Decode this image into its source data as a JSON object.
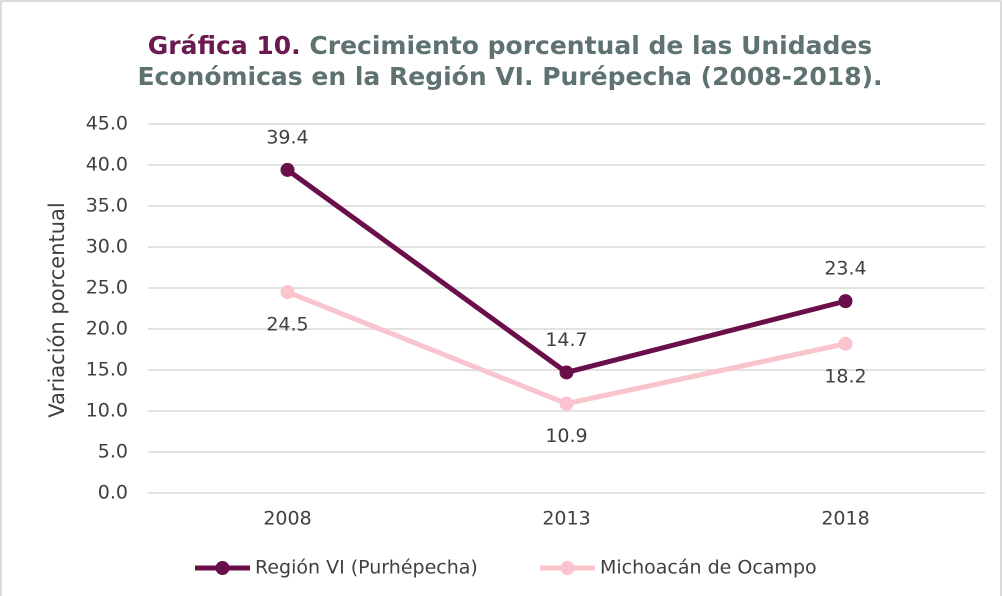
{
  "chart_data": {
    "type": "line",
    "title_label": "Gráfica 10.",
    "title": [
      "Crecimiento porcentual de las Unidades",
      "Económicas en la Región VI. Purépecha (2008-2018)."
    ],
    "y_label": "Variación porcentual",
    "categories": [
      "2008",
      "2013",
      "2018"
    ],
    "series": [
      {
        "name": "Región VI (Purhépecha)",
        "color": "#6b0f4a",
        "values": [
          39.4,
          14.7,
          23.4
        ]
      },
      {
        "name": "Michoacán de Ocampo",
        "color": "#f9c4cd",
        "values": [
          24.5,
          10.9,
          18.2
        ]
      }
    ],
    "ylim": [
      0,
      45
    ],
    "yticks": [
      {
        "value": 0,
        "label": "0.0"
      },
      {
        "value": 5,
        "label": "5.0"
      },
      {
        "value": 10,
        "label": "10.0"
      },
      {
        "value": 15,
        "label": "15.0"
      },
      {
        "value": 20,
        "label": "20.0"
      },
      {
        "value": 25,
        "label": "25.0"
      },
      {
        "value": 30,
        "label": "30.0"
      },
      {
        "value": 35,
        "label": "35.0"
      },
      {
        "value": 40,
        "label": "40.0"
      },
      {
        "value": 45,
        "label": "45.0"
      }
    ],
    "grid": true,
    "legend": "bottom"
  }
}
